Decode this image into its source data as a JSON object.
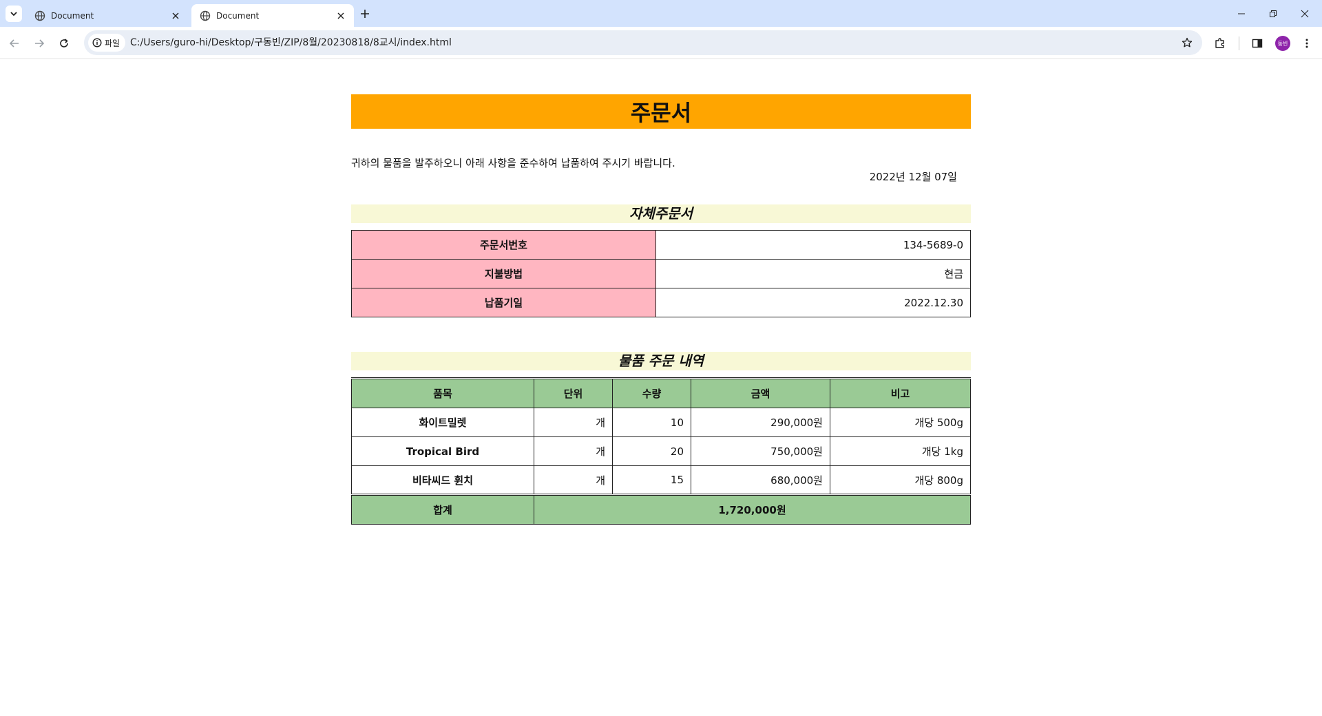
{
  "browser": {
    "tabs": [
      {
        "title": "Document"
      },
      {
        "title": "Document"
      }
    ],
    "address": {
      "scheme_label": "파일",
      "url": "C:/Users/guro-hi/Desktop/구동빈/ZIP/8월/20230818/8교시/index.html"
    },
    "profile_initials": "동빈"
  },
  "page": {
    "banner_title": "주문서",
    "intro_text": "귀하의 물품을 발주하오니 아래 사항을 준수하여 납품하여 주시기 바랍니다.",
    "date": "2022년 12월 07일",
    "section1_title": "자체주문서",
    "info_rows": [
      {
        "label": "주문서번호",
        "value": "134-5689-0"
      },
      {
        "label": "지불방법",
        "value": "현금"
      },
      {
        "label": "납품기일",
        "value": "2022.12.30"
      }
    ],
    "section2_title": "물품 주문 내역",
    "order_headers": [
      "품목",
      "단위",
      "수량",
      "금액",
      "비고"
    ],
    "order_rows": [
      {
        "item": "화이트밀렛",
        "unit": "개",
        "qty": "10",
        "amount": "290,000원",
        "note": "개당 500g"
      },
      {
        "item": "Tropical Bird",
        "unit": "개",
        "qty": "20",
        "amount": "750,000원",
        "note": "개당 1kg"
      },
      {
        "item": "비타씨드 휜치",
        "unit": "개",
        "qty": "15",
        "amount": "680,000원",
        "note": "개당 800g"
      }
    ],
    "total_label": "합계",
    "total_value": "1,720,000원"
  },
  "colors": {
    "banner": "#ffa500",
    "section_bg": "#f8f8d6",
    "info_label_bg": "#ffb6c1",
    "order_header_bg": "#9aca95",
    "tabbar_bg": "#d3e3fd"
  }
}
